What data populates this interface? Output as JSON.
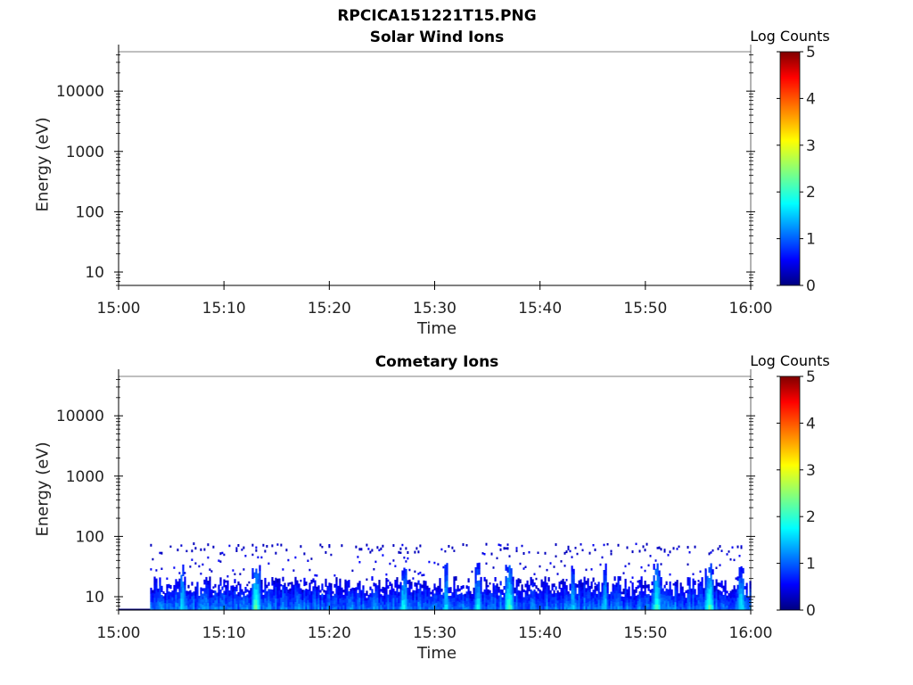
{
  "figure": {
    "title": "RPCICA151221T15.PNG"
  },
  "colors": {
    "colormap": [
      "#000080",
      "#0000ff",
      "#00ffff",
      "#ffff00",
      "#ff0000",
      "#800000"
    ],
    "axis": "#000000"
  },
  "chart_data": [
    {
      "type": "heatmap",
      "title": "Solar Wind Ions",
      "xlabel": "Time",
      "ylabel": "Energy (eV)",
      "x_ticks": [
        "15:00",
        "15:10",
        "15:20",
        "15:30",
        "15:40",
        "15:50",
        "16:00"
      ],
      "xlim": [
        "15:00",
        "16:00"
      ],
      "y_scale": "log",
      "y_ticks": [
        10,
        100,
        1000,
        10000
      ],
      "y_tick_labels": [
        "10",
        "100",
        "1000",
        "10000"
      ],
      "ylim": [
        6,
        45000
      ],
      "colorbar": {
        "label": "Log Counts",
        "range": [
          0,
          5
        ],
        "ticks": [
          "0",
          "1",
          "2",
          "3",
          "4",
          "5"
        ]
      },
      "data": "empty — no counts recorded"
    },
    {
      "type": "heatmap",
      "title": "Cometary Ions",
      "xlabel": "Time",
      "ylabel": "Energy (eV)",
      "x_ticks": [
        "15:00",
        "15:10",
        "15:20",
        "15:30",
        "15:40",
        "15:50",
        "16:00"
      ],
      "xlim": [
        "15:00",
        "16:00"
      ],
      "y_scale": "log",
      "y_ticks": [
        10,
        100,
        1000,
        10000
      ],
      "y_tick_labels": [
        "10",
        "100",
        "1000",
        "10000"
      ],
      "ylim": [
        6,
        45000
      ],
      "colorbar": {
        "label": "Log Counts",
        "range": [
          0,
          5
        ],
        "ticks": [
          "0",
          "1",
          "2",
          "3",
          "4",
          "5"
        ]
      },
      "data_start": "15:03",
      "energy_max_eV": 80,
      "peak_log_counts": 2.3,
      "bursts": [
        {
          "t": "15:04:00",
          "log_counts": 1.3
        },
        {
          "t": "15:06:00",
          "log_counts": 1.6
        },
        {
          "t": "15:08:00",
          "log_counts": 1.4
        },
        {
          "t": "15:13:00",
          "log_counts": 2.2
        },
        {
          "t": "15:17:00",
          "log_counts": 1.4
        },
        {
          "t": "15:22:00",
          "log_counts": 1.4
        },
        {
          "t": "15:27:00",
          "log_counts": 1.8
        },
        {
          "t": "15:31:00",
          "log_counts": 1.6
        },
        {
          "t": "15:34:00",
          "log_counts": 1.7
        },
        {
          "t": "15:37:00",
          "log_counts": 2.2
        },
        {
          "t": "15:43:00",
          "log_counts": 1.5
        },
        {
          "t": "15:46:00",
          "log_counts": 1.6
        },
        {
          "t": "15:51:00",
          "log_counts": 2.0
        },
        {
          "t": "15:56:00",
          "log_counts": 2.1
        },
        {
          "t": "15:59:00",
          "log_counts": 1.8
        }
      ]
    }
  ]
}
